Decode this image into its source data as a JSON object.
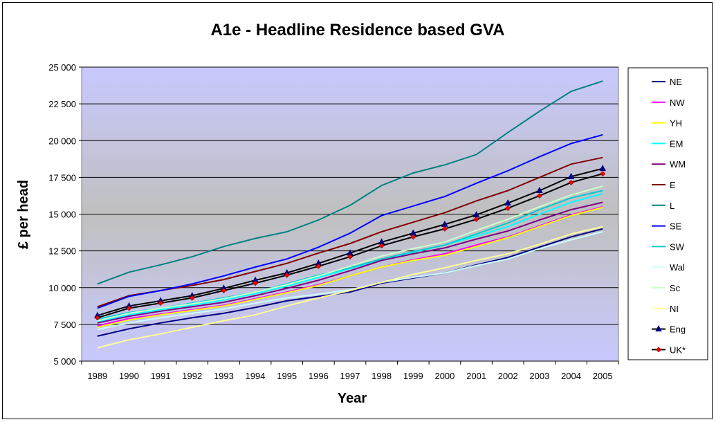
{
  "chart_data": {
    "type": "line",
    "title": "A1e - Headline Residence based GVA",
    "xlabel": "Year",
    "ylabel": "£ per head",
    "ylim": [
      5000,
      25000
    ],
    "y_ticks": [
      "5 000",
      "7 500",
      "10 000",
      "12 500",
      "15 000",
      "17 500",
      "20 000",
      "22 500",
      "25 000"
    ],
    "y_tick_values": [
      5000,
      7500,
      10000,
      12500,
      15000,
      17500,
      20000,
      22500,
      25000
    ],
    "categories": [
      "1989",
      "1990",
      "1991",
      "1992",
      "1993",
      "1994",
      "1995",
      "1996",
      "1997",
      "1998",
      "1999",
      "2000",
      "2001",
      "2002",
      "2003",
      "2004",
      "2005"
    ],
    "grid": true,
    "legend_position": "right",
    "plot_background": "gradient blue-grey",
    "series": [
      {
        "name": "NE",
        "color": "#000080",
        "marker": "none",
        "values": [
          6700,
          7200,
          7600,
          7950,
          8250,
          8650,
          9100,
          9400,
          9700,
          10300,
          10650,
          11000,
          11550,
          12050,
          12750,
          13450,
          14000
        ]
      },
      {
        "name": "NW",
        "color": "#ff00ff",
        "marker": "none",
        "values": [
          7400,
          7900,
          8200,
          8500,
          8800,
          9250,
          9700,
          10200,
          10800,
          11400,
          11900,
          12300,
          12900,
          13450,
          14200,
          14950,
          15500
        ]
      },
      {
        "name": "YH",
        "color": "#ffff00",
        "marker": "none",
        "values": [
          7300,
          7800,
          8150,
          8450,
          8750,
          9200,
          9650,
          10150,
          10800,
          11400,
          11850,
          12200,
          12800,
          13400,
          14150,
          14900,
          15450
        ]
      },
      {
        "name": "EM",
        "color": "#00ffff",
        "marker": "none",
        "values": [
          7650,
          8150,
          8500,
          8800,
          9150,
          9600,
          10100,
          10700,
          11300,
          11900,
          12400,
          12900,
          13500,
          14150,
          15000,
          15800,
          16400
        ]
      },
      {
        "name": "WM",
        "color": "#800080",
        "marker": "none",
        "values": [
          7600,
          8050,
          8400,
          8700,
          9000,
          9450,
          9950,
          10500,
          11150,
          11850,
          12300,
          12700,
          13300,
          13850,
          14600,
          15300,
          15800
        ]
      },
      {
        "name": "E",
        "color": "#800000",
        "marker": "none",
        "values": [
          8700,
          9450,
          9800,
          10150,
          10550,
          11100,
          11650,
          12350,
          13000,
          13800,
          14450,
          15100,
          15900,
          16600,
          17500,
          18400,
          18850
        ]
      },
      {
        "name": "L",
        "color": "#008080",
        "marker": "none",
        "values": [
          10250,
          11050,
          11550,
          12100,
          12800,
          13350,
          13800,
          14600,
          15600,
          16950,
          17800,
          18350,
          19050,
          20550,
          22000,
          23350,
          24050
        ]
      },
      {
        "name": "SE",
        "color": "#0000ff",
        "marker": "none",
        "values": [
          8600,
          9400,
          9800,
          10250,
          10800,
          11400,
          11950,
          12750,
          13700,
          14900,
          15550,
          16200,
          17100,
          17950,
          18900,
          19800,
          20400
        ]
      },
      {
        "name": "SW",
        "color": "#00cccc",
        "marker": "none",
        "values": [
          7850,
          8300,
          8600,
          8950,
          9300,
          9700,
          10250,
          10850,
          11350,
          11950,
          12450,
          12900,
          13650,
          14400,
          15300,
          16100,
          16600
        ]
      },
      {
        "name": "Wal",
        "color": "#ccffff",
        "marker": "none",
        "values": [
          7150,
          7600,
          7950,
          8250,
          8550,
          8950,
          9300,
          9550,
          9850,
          10350,
          10700,
          11000,
          11500,
          11950,
          12650,
          13250,
          13800
        ]
      },
      {
        "name": "Sc",
        "color": "#ccffcc",
        "marker": "none",
        "values": [
          7750,
          8250,
          8600,
          8900,
          9250,
          9700,
          10200,
          10800,
          11450,
          12150,
          12650,
          13100,
          13900,
          14650,
          15500,
          16300,
          16900
        ]
      },
      {
        "name": "NI",
        "color": "#ffff99",
        "marker": "none",
        "values": [
          5900,
          6450,
          6850,
          7300,
          7750,
          8150,
          8750,
          9300,
          9800,
          10350,
          10900,
          11350,
          11850,
          12300,
          12950,
          13650,
          14150
        ]
      },
      {
        "name": "Eng",
        "color": "#000080",
        "marker": "triangle",
        "marker_color": "#000080",
        "line_color": "#000000",
        "values": [
          8100,
          8750,
          9100,
          9450,
          9950,
          10500,
          11000,
          11650,
          12350,
          13100,
          13700,
          14300,
          14950,
          15750,
          16600,
          17550,
          18100
        ]
      },
      {
        "name": "UK*",
        "color": "#000000",
        "marker": "diamond",
        "marker_color": "#ff0000",
        "line_color": "#000000",
        "values": [
          7950,
          8600,
          8950,
          9300,
          9800,
          10300,
          10850,
          11450,
          12100,
          12850,
          13450,
          14000,
          14650,
          15400,
          16250,
          17150,
          17750
        ]
      }
    ]
  }
}
